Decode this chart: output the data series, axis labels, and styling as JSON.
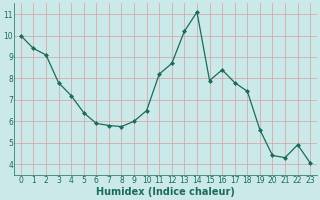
{
  "x": [
    0,
    1,
    2,
    3,
    4,
    5,
    6,
    7,
    8,
    9,
    10,
    11,
    12,
    13,
    14,
    15,
    16,
    17,
    18,
    19,
    20,
    21,
    22,
    23
  ],
  "y": [
    10.0,
    9.4,
    9.1,
    7.8,
    7.2,
    6.4,
    5.9,
    5.8,
    5.75,
    6.0,
    6.5,
    8.2,
    8.7,
    10.2,
    11.1,
    7.9,
    8.4,
    7.8,
    7.4,
    5.6,
    4.4,
    4.3,
    4.9,
    4.05
  ],
  "line_color": "#1a6b5a",
  "marker": "D",
  "marker_size": 2.0,
  "bg_color": "#cce9e9",
  "grid_color": "#b0d0d0",
  "xlabel": "Humidex (Indice chaleur)",
  "xlim": [
    -0.5,
    23.5
  ],
  "ylim": [
    3.5,
    11.5
  ],
  "yticks": [
    4,
    5,
    6,
    7,
    8,
    9,
    10,
    11
  ],
  "xticks": [
    0,
    1,
    2,
    3,
    4,
    5,
    6,
    7,
    8,
    9,
    10,
    11,
    12,
    13,
    14,
    15,
    16,
    17,
    18,
    19,
    20,
    21,
    22,
    23
  ],
  "tick_label_fontsize": 5.5,
  "xlabel_fontsize": 7.0,
  "label_color": "#1a6b5a"
}
